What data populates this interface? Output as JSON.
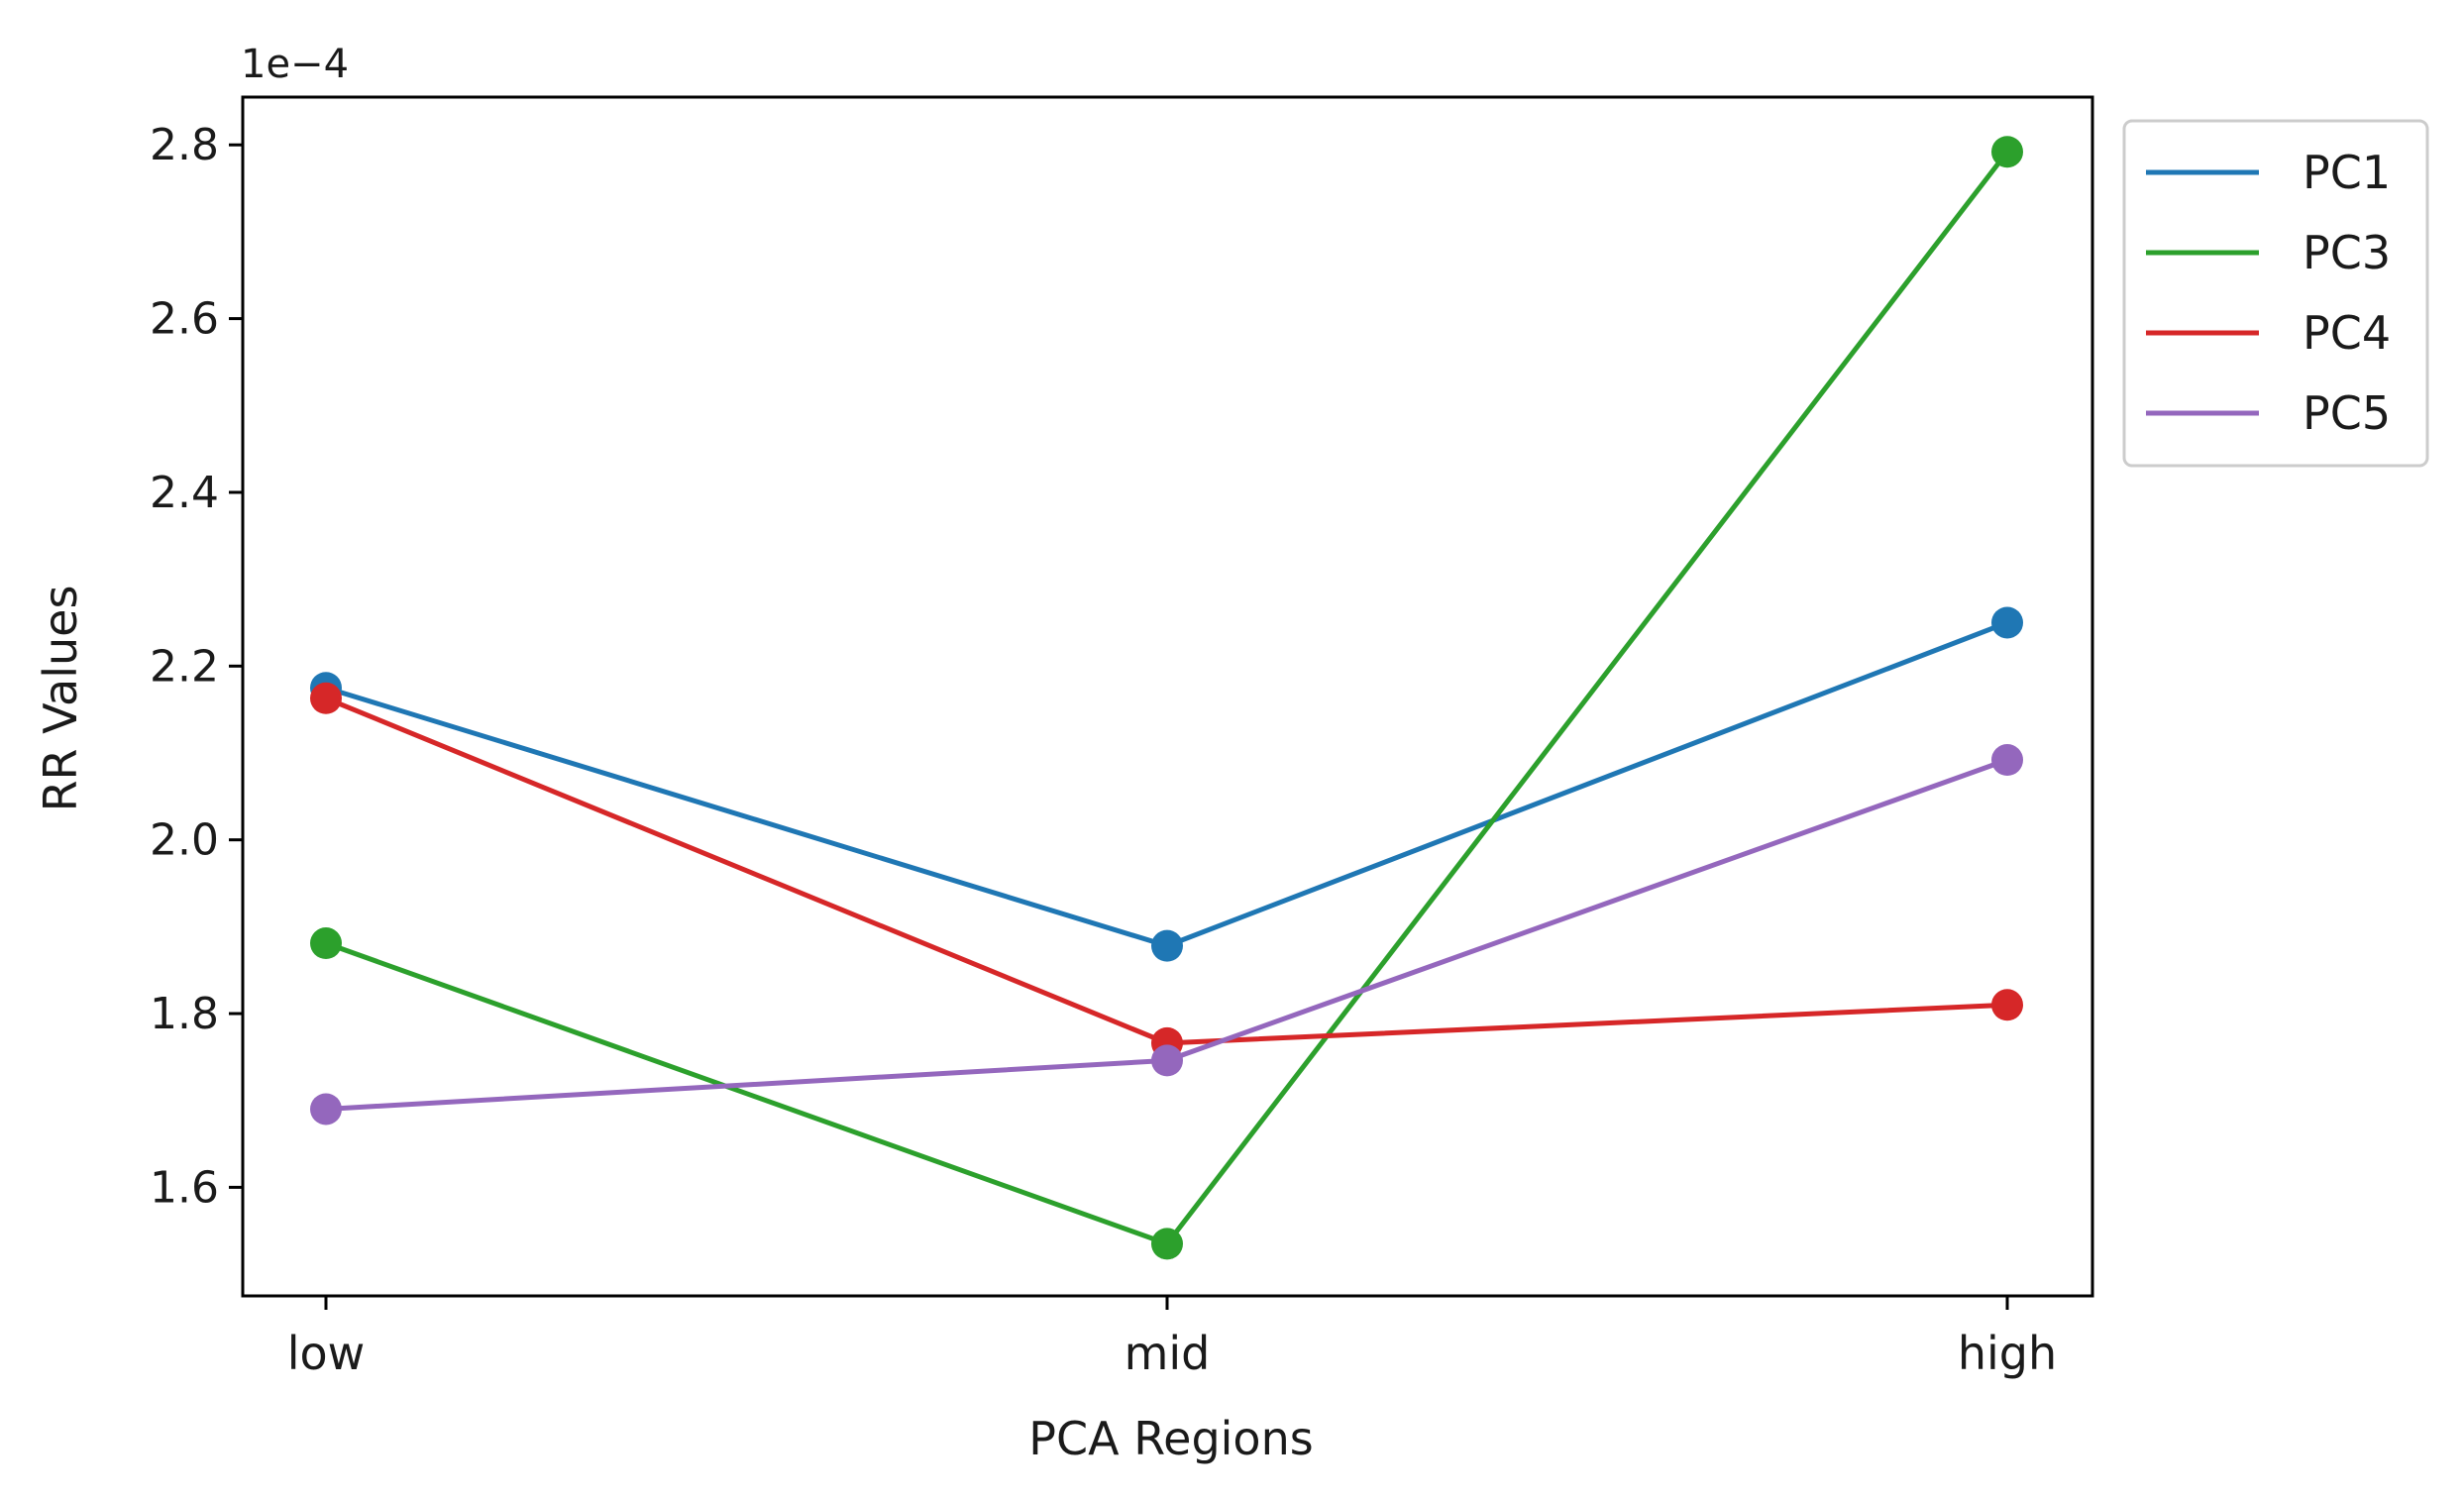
{
  "chart_data": {
    "type": "line",
    "title": "",
    "xlabel": "PCA Regions",
    "ylabel": "RR Values",
    "categories": [
      "low",
      "mid",
      "high"
    ],
    "y_offset_label": "1e−4",
    "y_scale": 0.0001,
    "ylim": [
      1.475,
      2.855
    ],
    "yticks": [
      1.6,
      1.8,
      2.0,
      2.2,
      2.4,
      2.6,
      2.8
    ],
    "ytick_labels": [
      "1.6",
      "1.8",
      "2.0",
      "2.2",
      "2.4",
      "2.6",
      "2.8"
    ],
    "grid": false,
    "legend_position": "outside top-right",
    "series": [
      {
        "name": "PC1",
        "color": "#1f77b4",
        "values": [
          2.175,
          1.878,
          2.25
        ]
      },
      {
        "name": "PC3",
        "color": "#2ca02c",
        "values": [
          1.881,
          1.535,
          2.792
        ]
      },
      {
        "name": "PC4",
        "color": "#d62728",
        "values": [
          2.163,
          1.766,
          1.81
        ]
      },
      {
        "name": "PC5",
        "color": "#9467bd",
        "values": [
          1.69,
          1.746,
          2.092
        ]
      }
    ]
  }
}
